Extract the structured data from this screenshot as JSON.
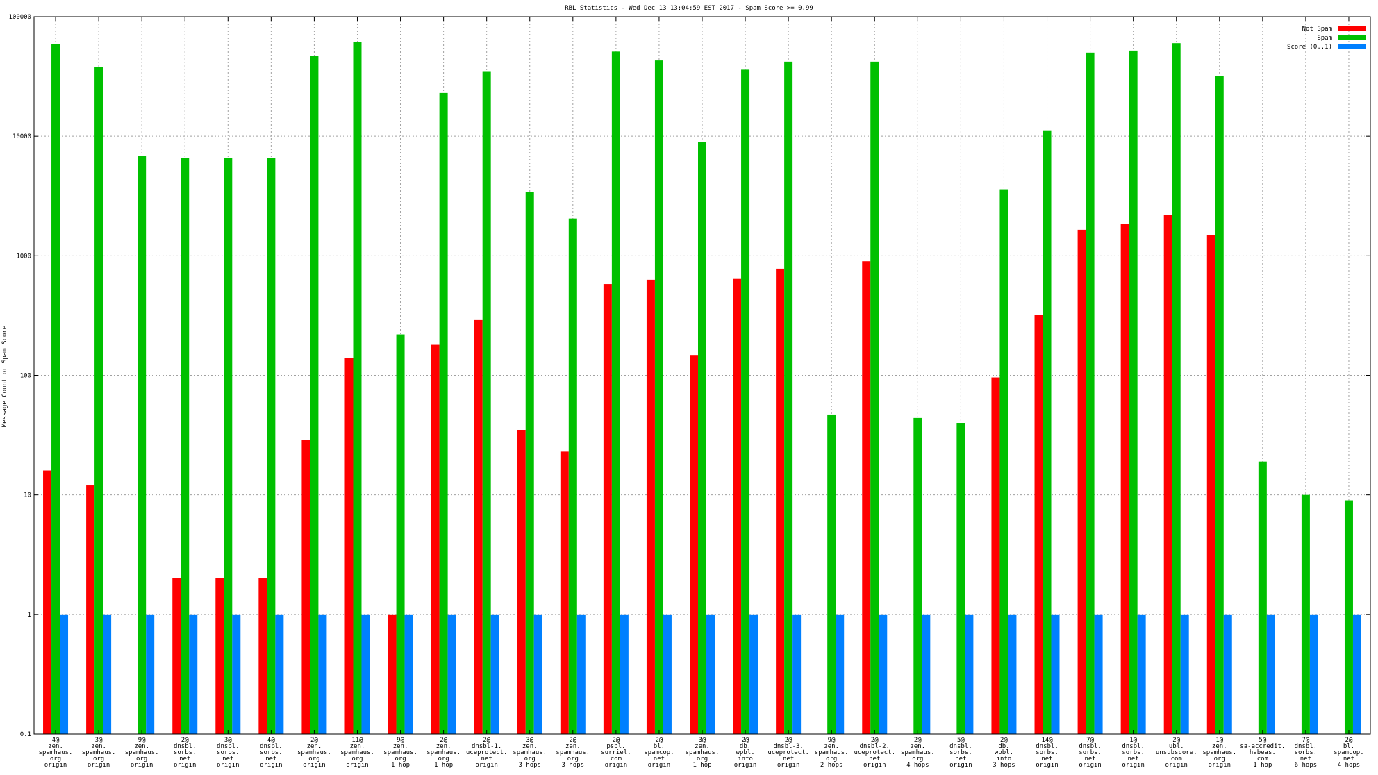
{
  "chart_data": {
    "type": "bar",
    "title": "RBL Statistics - Wed Dec 13 13:04:59 EST 2017 - Spam Score >= 0.99",
    "ylabel": "Message Count or Spam Score",
    "xlabel": "",
    "yscale": "log",
    "ylim": [
      0.1,
      100000
    ],
    "yticks": [
      "0.1",
      "1",
      "10",
      "100",
      "1000",
      "10000",
      "100000"
    ],
    "grid": true,
    "legend_position": "top-right",
    "categories": [
      [
        "4@",
        "zen.",
        "spamhaus.",
        "org",
        "origin"
      ],
      [
        "3@",
        "zen.",
        "spamhaus.",
        "org",
        "origin"
      ],
      [
        "9@",
        "zen.",
        "spamhaus.",
        "org",
        "origin"
      ],
      [
        "2@",
        "dnsbl.",
        "sorbs.",
        "net",
        "origin"
      ],
      [
        "3@",
        "dnsbl.",
        "sorbs.",
        "net",
        "origin"
      ],
      [
        "4@",
        "dnsbl.",
        "sorbs.",
        "net",
        "origin"
      ],
      [
        "2@",
        "zen.",
        "spamhaus.",
        "org",
        "origin"
      ],
      [
        "11@",
        "zen.",
        "spamhaus.",
        "org",
        "origin"
      ],
      [
        "9@",
        "zen.",
        "spamhaus.",
        "org",
        "1 hop"
      ],
      [
        "2@",
        "zen.",
        "spamhaus.",
        "org",
        "1 hop"
      ],
      [
        "2@",
        "dnsbl-1.",
        "uceprotect.",
        "net",
        "origin"
      ],
      [
        "3@",
        "zen.",
        "spamhaus.",
        "org",
        "3 hops"
      ],
      [
        "2@",
        "zen.",
        "spamhaus.",
        "org",
        "3 hops"
      ],
      [
        "2@",
        "psbl.",
        "surriel.",
        "com",
        "origin"
      ],
      [
        "2@",
        "bl.",
        "spamcop.",
        "net",
        "origin"
      ],
      [
        "3@",
        "zen.",
        "spamhaus.",
        "org",
        "1 hop"
      ],
      [
        "2@",
        "db.",
        "wpbl.",
        "info",
        "origin"
      ],
      [
        "2@",
        "dnsbl-3.",
        "uceprotect.",
        "net",
        "origin"
      ],
      [
        "9@",
        "zen.",
        "spamhaus.",
        "org",
        "2 hops"
      ],
      [
        "2@",
        "dnsbl-2.",
        "uceprotect.",
        "net",
        "origin"
      ],
      [
        "2@",
        "zen.",
        "spamhaus.",
        "org",
        "4 hops"
      ],
      [
        "5@",
        "dnsbl.",
        "sorbs.",
        "net",
        "origin"
      ],
      [
        "2@",
        "db.",
        "wpbl.",
        "info",
        "3 hops"
      ],
      [
        "14@",
        "dnsbl.",
        "sorbs.",
        "net",
        "origin"
      ],
      [
        "7@",
        "dnsbl.",
        "sorbs.",
        "net",
        "origin"
      ],
      [
        "1@",
        "dnsbl.",
        "sorbs.",
        "net",
        "origin"
      ],
      [
        "2@",
        "ubl.",
        "unsubscore.",
        "com",
        "origin"
      ],
      [
        "1@",
        "zen.",
        "spamhaus.",
        "org",
        "origin"
      ],
      [
        "5@",
        "sa-accredit.",
        "habeas.",
        "com",
        "1 hop"
      ],
      [
        "7@",
        "dnsbl.",
        "sorbs.",
        "net",
        "6 hops"
      ],
      [
        "2@",
        "bl.",
        "spamcop.",
        "net",
        "4 hops"
      ]
    ],
    "series": [
      {
        "name": "Not Spam",
        "color": "#ff0000",
        "values": [
          16,
          12,
          null,
          2,
          2,
          2,
          29,
          140,
          1,
          180,
          290,
          35,
          23,
          580,
          630,
          148,
          640,
          780,
          null,
          900,
          null,
          null,
          96,
          320,
          1650,
          1850,
          2200,
          1500,
          null,
          null,
          null
        ]
      },
      {
        "name": "Spam",
        "color": "#00c000",
        "values": [
          59000,
          38000,
          6800,
          6600,
          6600,
          6600,
          47000,
          61000,
          220,
          23000,
          35000,
          3400,
          2050,
          51000,
          43000,
          8900,
          36000,
          42000,
          47,
          42000,
          44,
          40,
          3600,
          11200,
          50000,
          52000,
          60000,
          32000,
          19,
          10,
          9
        ]
      },
      {
        "name": "Score (0..1)",
        "color": "#0080ff",
        "values": [
          1,
          1,
          1,
          1,
          1,
          1,
          1,
          1,
          1,
          1,
          1,
          1,
          1,
          1,
          1,
          1,
          1,
          1,
          1,
          1,
          1,
          1,
          1,
          1,
          1,
          1,
          1,
          1,
          1,
          1,
          1
        ]
      }
    ]
  }
}
